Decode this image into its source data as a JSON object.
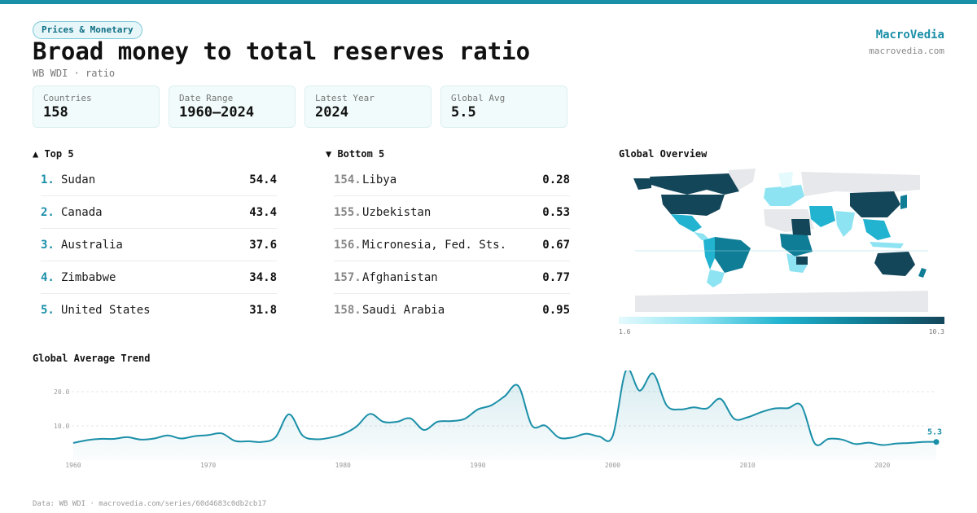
{
  "header": {
    "tag": "Prices & Monetary",
    "title": "Broad money to total reserves ratio",
    "subtitle": "WB WDI · ratio",
    "brand": "MacroVedia",
    "brand_url": "macrovedia.com"
  },
  "stats": [
    {
      "label": "Countries",
      "value": "158"
    },
    {
      "label": "Date Range",
      "value": "1960–2024"
    },
    {
      "label": "Latest Year",
      "value": "2024"
    },
    {
      "label": "Global Avg",
      "value": "5.5"
    }
  ],
  "top5": {
    "heading": "▲ Top 5",
    "items": [
      {
        "rank": "1.",
        "name": "Sudan",
        "value": "54.4"
      },
      {
        "rank": "2.",
        "name": "Canada",
        "value": "43.4"
      },
      {
        "rank": "3.",
        "name": "Australia",
        "value": "37.6"
      },
      {
        "rank": "4.",
        "name": "Zimbabwe",
        "value": "34.8"
      },
      {
        "rank": "5.",
        "name": "United States",
        "value": "31.8"
      }
    ]
  },
  "bottom5": {
    "heading": "▼ Bottom 5",
    "items": [
      {
        "rank": "154.",
        "name": "Libya",
        "value": "0.28"
      },
      {
        "rank": "155.",
        "name": "Uzbekistan",
        "value": "0.53"
      },
      {
        "rank": "156.",
        "name": "Micronesia, Fed. Sts.",
        "value": "0.67"
      },
      {
        "rank": "157.",
        "name": "Afghanistan",
        "value": "0.77"
      },
      {
        "rank": "158.",
        "name": "Saudi Arabia",
        "value": "0.95"
      }
    ]
  },
  "map": {
    "heading": "Global Overview",
    "scale_min": "1.6",
    "scale_max": "10.3",
    "colors": [
      "#e4fafd",
      "#8de3f2",
      "#21b3cf",
      "#0f7d96",
      "#14465a"
    ],
    "no_data_color": "#e6e8eb"
  },
  "trend": {
    "heading": "Global Average Trend",
    "last_label": "5.3",
    "line_color": "#1a8fa8"
  },
  "chart_data": {
    "type": "area",
    "title": "Global Average Trend",
    "xlabel": "",
    "ylabel": "",
    "xlim": [
      1960,
      2024
    ],
    "ylim": [
      0,
      25
    ],
    "x_ticks": [
      1960,
      1970,
      1980,
      1990,
      2000,
      2010,
      2020
    ],
    "y_ticks": [
      10.0,
      20.0
    ],
    "y_tick_labels": [
      "10.0",
      "20.0"
    ],
    "grid": "horizontal dashed",
    "x": [
      1960,
      1961,
      1962,
      1963,
      1964,
      1965,
      1966,
      1967,
      1968,
      1969,
      1970,
      1971,
      1972,
      1973,
      1974,
      1975,
      1976,
      1977,
      1978,
      1979,
      1980,
      1981,
      1982,
      1983,
      1984,
      1985,
      1986,
      1987,
      1988,
      1989,
      1990,
      1991,
      1992,
      1993,
      1994,
      1995,
      1996,
      1997,
      1998,
      1999,
      2000,
      2001,
      2002,
      2003,
      2004,
      2005,
      2006,
      2007,
      2008,
      2009,
      2010,
      2011,
      2012,
      2013,
      2014,
      2015,
      2016,
      2017,
      2018,
      2019,
      2020,
      2021,
      2022,
      2023,
      2024
    ],
    "series": [
      {
        "values": [
          5.0,
          5.8,
          6.2,
          6.2,
          6.7,
          6.0,
          6.3,
          7.2,
          6.3,
          7.0,
          7.3,
          7.8,
          5.6,
          5.5,
          5.3,
          6.7,
          13.4,
          7.2,
          6.1,
          6.5,
          7.6,
          9.8,
          13.5,
          11.2,
          11.2,
          12.2,
          8.8,
          11.2,
          11.4,
          12.0,
          14.8,
          16.0,
          18.7,
          21.7,
          10.2,
          10.1,
          6.6,
          6.6,
          7.7,
          6.9,
          7.0,
          26.3,
          20.3,
          25.3,
          16.0,
          14.8,
          15.4,
          15.1,
          17.9,
          12.1,
          12.5,
          14.0,
          15.1,
          15.2,
          15.9,
          4.8,
          6.2,
          6.0,
          4.7,
          5.1,
          4.4,
          4.8,
          5.0,
          5.3,
          5.3
        ]
      }
    ]
  }
}
